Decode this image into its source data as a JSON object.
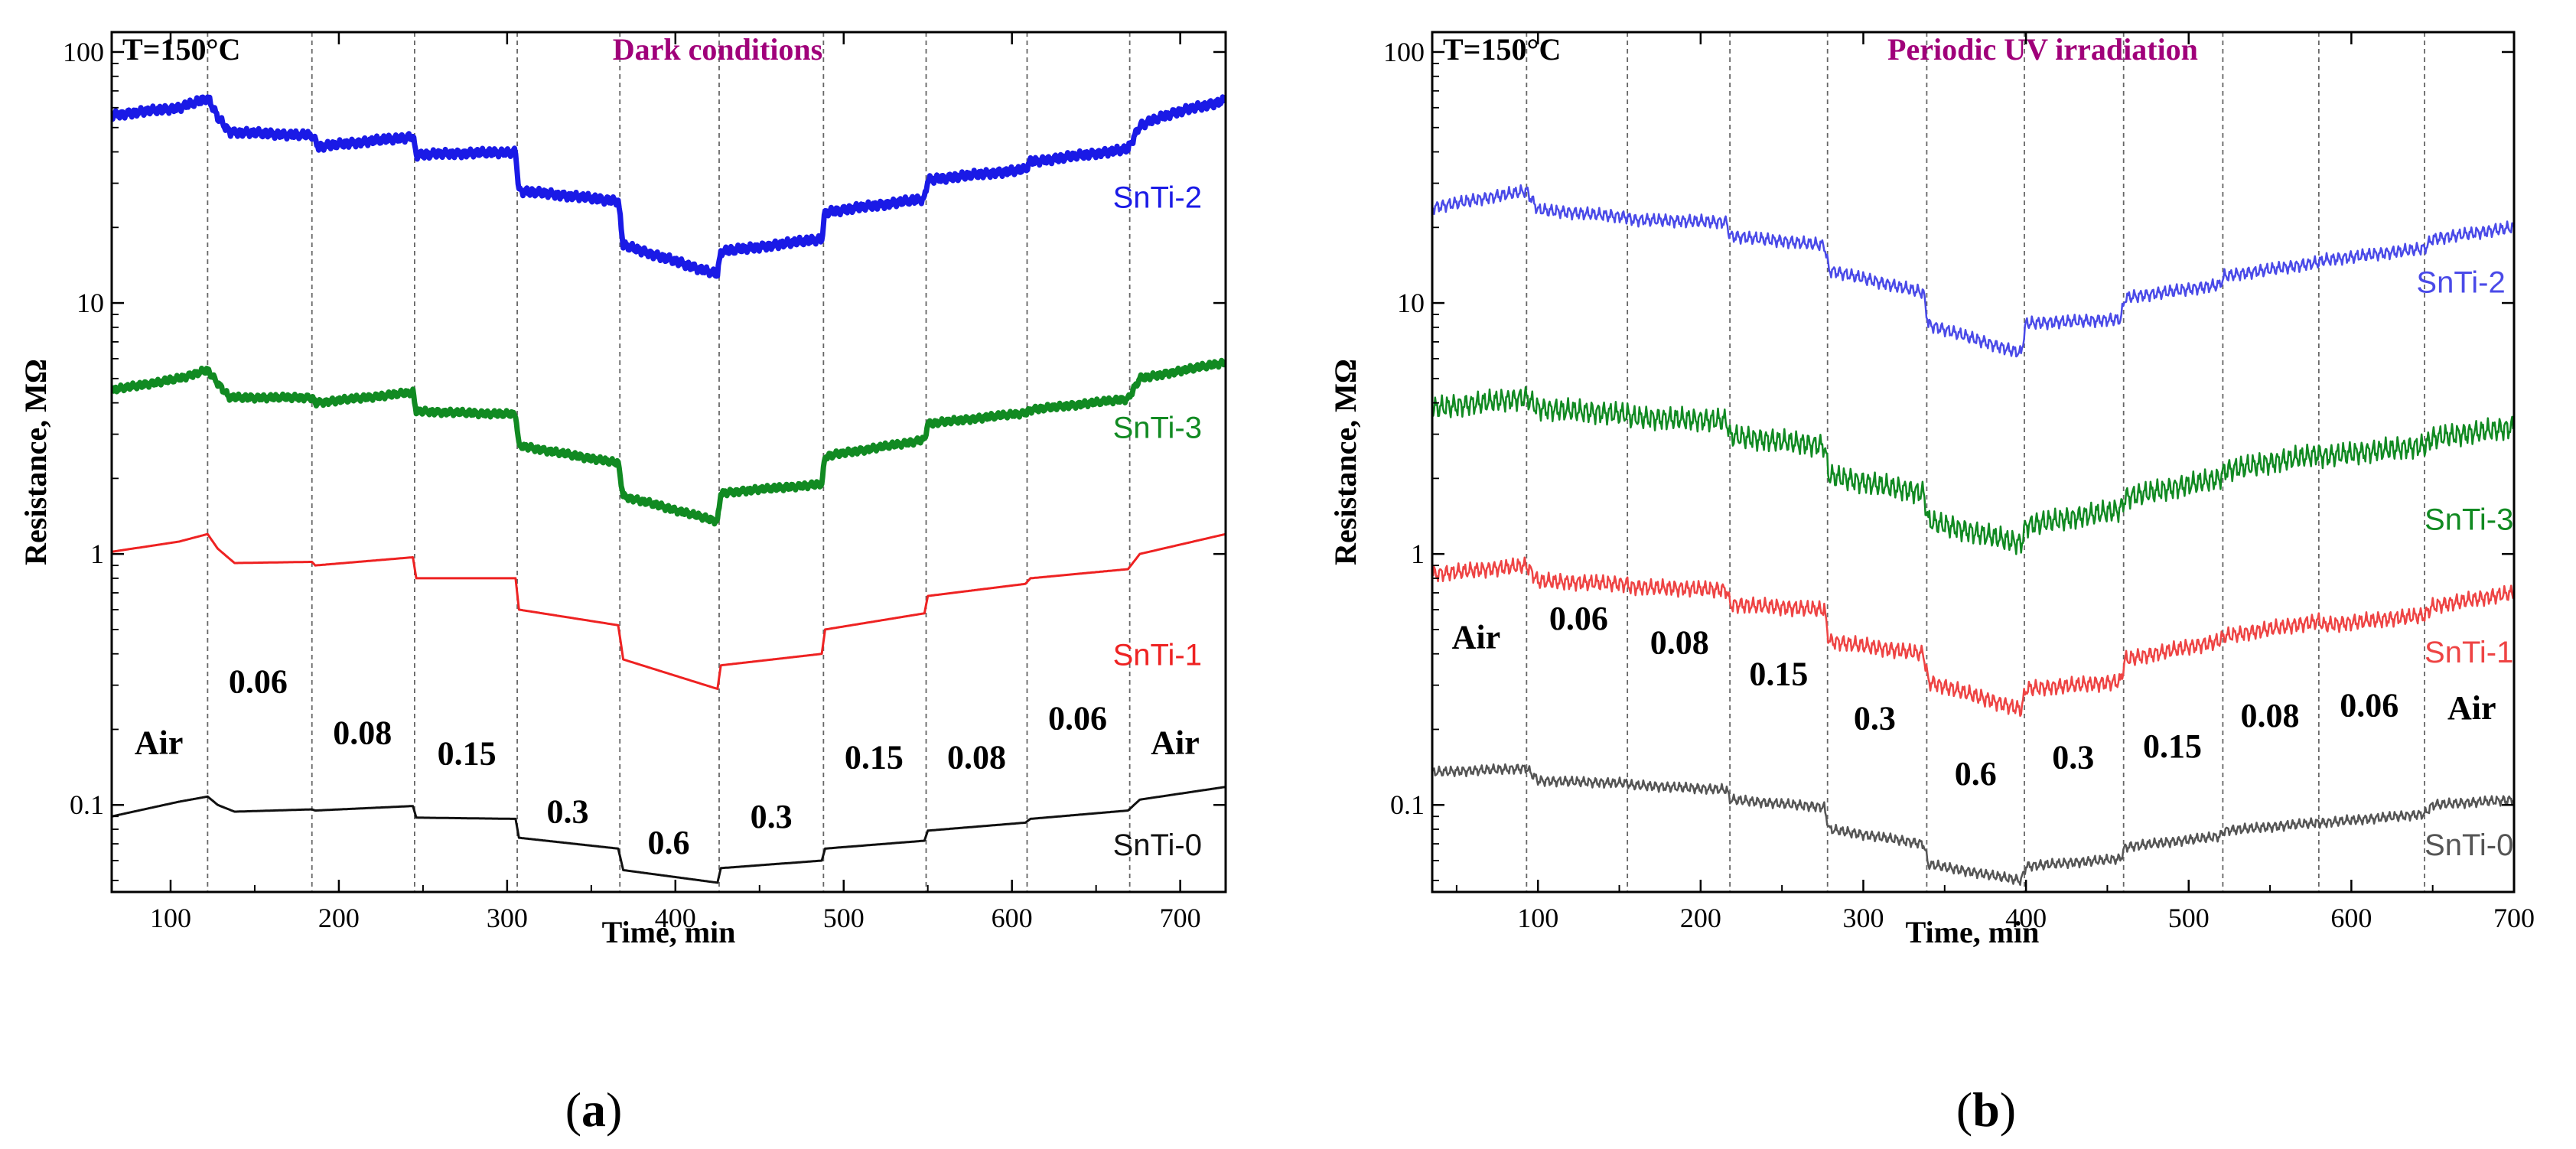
{
  "colors": {
    "SnTi-2": "#1a1ae6",
    "SnTi-3": "#118a22",
    "SnTi-1": "#ee2222",
    "SnTi-0": "#111111",
    "condition_title": "#a0007a"
  },
  "chart_data": [
    {
      "type": "line",
      "panel": "(a)",
      "panel_paren_open": "(",
      "panel_letter": "a",
      "panel_paren_close": ")",
      "temperature": "T=150°C",
      "title": "Dark conditions",
      "xlabel": "Time, min",
      "ylabel": "Resistance, MΩ",
      "yscale": "log",
      "xlim": [
        65,
        727
      ],
      "ylim": [
        0.045,
        120
      ],
      "xticks": [
        100,
        200,
        300,
        400,
        500,
        600,
        700
      ],
      "yticks": [
        {
          "value": 0.1,
          "label": "0.1"
        },
        {
          "value": 1,
          "label": "1"
        },
        {
          "value": 10,
          "label": "10"
        },
        {
          "value": 100,
          "label": "100"
        }
      ],
      "gas_switch_times": [
        122,
        184,
        245,
        306,
        367,
        426,
        488,
        549,
        609,
        670
      ],
      "concentration_labels": [
        {
          "text": "Air",
          "x": 93,
          "y": 0.16
        },
        {
          "text": "0.06",
          "x": 152,
          "y": 0.28
        },
        {
          "text": "0.08",
          "x": 214,
          "y": 0.175
        },
        {
          "text": "0.15",
          "x": 276,
          "y": 0.145
        },
        {
          "text": "0.3",
          "x": 336,
          "y": 0.085
        },
        {
          "text": "0.6",
          "x": 396,
          "y": 0.064
        },
        {
          "text": "0.3",
          "x": 457,
          "y": 0.081
        },
        {
          "text": "0.15",
          "x": 518,
          "y": 0.14
        },
        {
          "text": "0.08",
          "x": 579,
          "y": 0.14
        },
        {
          "text": "0.06",
          "x": 639,
          "y": 0.2
        },
        {
          "text": "Air",
          "x": 697,
          "y": 0.16
        }
      ],
      "series": [
        {
          "name": "SnTi-2",
          "color": "#1a1ae6",
          "width": 7,
          "noise": 0.018,
          "label_x": 660,
          "label_y": 24,
          "points": [
            [
              65,
              56
            ],
            [
              105,
              60
            ],
            [
              118,
              64
            ],
            [
              122,
              66
            ],
            [
              128,
              55
            ],
            [
              135,
              48
            ],
            [
              184,
              46.5
            ],
            [
              188,
              42
            ],
            [
              244,
              46
            ],
            [
              246,
              39
            ],
            [
              305,
              40
            ],
            [
              307,
              28
            ],
            [
              366,
              25.5
            ],
            [
              369,
              17
            ],
            [
              425,
              13
            ],
            [
              427,
              16
            ],
            [
              487,
              18
            ],
            [
              489,
              23
            ],
            [
              548,
              26
            ],
            [
              550,
              31
            ],
            [
              608,
              34
            ],
            [
              611,
              36.5
            ],
            [
              669,
              41
            ],
            [
              676,
              51
            ],
            [
              695,
              57
            ],
            [
              727,
              64
            ]
          ]
        },
        {
          "name": "SnTi-3",
          "color": "#118a22",
          "width": 7,
          "noise": 0.014,
          "label_x": 660,
          "label_y": 2.9,
          "points": [
            [
              65,
              4.5
            ],
            [
              105,
              5
            ],
            [
              122,
              5.4
            ],
            [
              128,
              4.8
            ],
            [
              135,
              4.2
            ],
            [
              184,
              4.2
            ],
            [
              186,
              4.0
            ],
            [
              244,
              4.4
            ],
            [
              246,
              3.7
            ],
            [
              305,
              3.6
            ],
            [
              307,
              2.7
            ],
            [
              366,
              2.3
            ],
            [
              369,
              1.7
            ],
            [
              425,
              1.35
            ],
            [
              427,
              1.75
            ],
            [
              487,
              1.9
            ],
            [
              489,
              2.45
            ],
            [
              548,
              2.85
            ],
            [
              550,
              3.3
            ],
            [
              608,
              3.65
            ],
            [
              611,
              3.75
            ],
            [
              669,
              4.15
            ],
            [
              676,
              5.0
            ],
            [
              727,
              5.8
            ]
          ]
        },
        {
          "name": "SnTi-1",
          "color": "#ee2222",
          "width": 3,
          "noise": 0,
          "label_x": 660,
          "label_y": 0.36,
          "points": [
            [
              65,
              1.02
            ],
            [
              105,
              1.12
            ],
            [
              122,
              1.2
            ],
            [
              128,
              1.05
            ],
            [
              138,
              0.92
            ],
            [
              184,
              0.93
            ],
            [
              186,
              0.9
            ],
            [
              244,
              0.97
            ],
            [
              246,
              0.8
            ],
            [
              305,
              0.8
            ],
            [
              307,
              0.6
            ],
            [
              366,
              0.52
            ],
            [
              369,
              0.38
            ],
            [
              425,
              0.29
            ],
            [
              427,
              0.36
            ],
            [
              487,
              0.4
            ],
            [
              489,
              0.5
            ],
            [
              548,
              0.58
            ],
            [
              550,
              0.68
            ],
            [
              608,
              0.76
            ],
            [
              611,
              0.8
            ],
            [
              669,
              0.87
            ],
            [
              676,
              1.0
            ],
            [
              727,
              1.2
            ]
          ]
        },
        {
          "name": "SnTi-0",
          "color": "#111111",
          "width": 3,
          "noise": 0,
          "label_x": 660,
          "label_y": 0.063,
          "points": [
            [
              65,
              0.09
            ],
            [
              105,
              0.103
            ],
            [
              122,
              0.108
            ],
            [
              128,
              0.1
            ],
            [
              138,
              0.094
            ],
            [
              184,
              0.096
            ],
            [
              186,
              0.095
            ],
            [
              244,
              0.099
            ],
            [
              246,
              0.089
            ],
            [
              305,
              0.088
            ],
            [
              307,
              0.074
            ],
            [
              366,
              0.067
            ],
            [
              369,
              0.055
            ],
            [
              425,
              0.049
            ],
            [
              427,
              0.056
            ],
            [
              487,
              0.06
            ],
            [
              489,
              0.067
            ],
            [
              548,
              0.072
            ],
            [
              550,
              0.079
            ],
            [
              608,
              0.085
            ],
            [
              611,
              0.088
            ],
            [
              669,
              0.095
            ],
            [
              676,
              0.105
            ],
            [
              727,
              0.118
            ]
          ]
        }
      ]
    },
    {
      "type": "line",
      "panel": "(b)",
      "panel_paren_open": "(",
      "panel_letter": "b",
      "panel_paren_close": ")",
      "temperature": "T=150°C",
      "title": "Periodic UV irradiation",
      "xlabel": "Time, min",
      "ylabel": "Resistance, MΩ",
      "yscale": "log",
      "xlim": [
        35,
        700
      ],
      "ylim": [
        0.045,
        120
      ],
      "xticks": [
        100,
        200,
        300,
        400,
        500,
        600,
        700
      ],
      "yticks": [
        {
          "value": 0.1,
          "label": "0.1"
        },
        {
          "value": 1,
          "label": "1"
        },
        {
          "value": 10,
          "label": "10"
        },
        {
          "value": 100,
          "label": "100"
        }
      ],
      "gas_switch_times": [
        93,
        155,
        218,
        278,
        339,
        399,
        460,
        521,
        580,
        645
      ],
      "concentration_labels": [
        {
          "text": "Air",
          "x": 62,
          "y": 0.42
        },
        {
          "text": "0.06",
          "x": 125,
          "y": 0.5
        },
        {
          "text": "0.08",
          "x": 187,
          "y": 0.4
        },
        {
          "text": "0.15",
          "x": 248,
          "y": 0.3
        },
        {
          "text": "0.3",
          "x": 307,
          "y": 0.2
        },
        {
          "text": "0.6",
          "x": 369,
          "y": 0.12
        },
        {
          "text": "0.3",
          "x": 429,
          "y": 0.14
        },
        {
          "text": "0.15",
          "x": 490,
          "y": 0.155
        },
        {
          "text": "0.08",
          "x": 550,
          "y": 0.205
        },
        {
          "text": "0.06",
          "x": 611,
          "y": 0.225
        },
        {
          "text": "Air",
          "x": 674,
          "y": 0.22
        }
      ],
      "series": [
        {
          "name": "SnTi-2",
          "color": "#4a4ae8",
          "width": 2.5,
          "noise": 0.028,
          "label_x": 640,
          "label_y": 11,
          "points": [
            [
              35,
              24
            ],
            [
              93,
              28
            ],
            [
              100,
              23.5
            ],
            [
              155,
              22
            ],
            [
              157,
              21.5
            ],
            [
              216,
              21
            ],
            [
              218,
              18.5
            ],
            [
              276,
              17
            ],
            [
              279,
              13.5
            ],
            [
              337,
              11
            ],
            [
              340,
              8.2
            ],
            [
              397,
              6.3
            ],
            [
              400,
              8.3
            ],
            [
              458,
              8.6
            ],
            [
              461,
              10.5
            ],
            [
              519,
              11.8
            ],
            [
              522,
              12.8
            ],
            [
              580,
              14.5
            ],
            [
              583,
              14.8
            ],
            [
              645,
              16.5
            ],
            [
              650,
              18
            ],
            [
              700,
              20
            ]
          ]
        },
        {
          "name": "SnTi-3",
          "color": "#118a22",
          "width": 2.5,
          "noise": 0.05,
          "label_x": 645,
          "label_y": 1.25,
          "points": [
            [
              35,
              3.8
            ],
            [
              93,
              4.2
            ],
            [
              100,
              3.8
            ],
            [
              155,
              3.6
            ],
            [
              157,
              3.5
            ],
            [
              216,
              3.4
            ],
            [
              218,
              2.95
            ],
            [
              276,
              2.7
            ],
            [
              279,
              2.05
            ],
            [
              337,
              1.75
            ],
            [
              340,
              1.35
            ],
            [
              397,
              1.1
            ],
            [
              400,
              1.3
            ],
            [
              458,
              1.5
            ],
            [
              461,
              1.68
            ],
            [
              519,
              2.0
            ],
            [
              522,
              2.15
            ],
            [
              580,
              2.5
            ],
            [
              583,
              2.45
            ],
            [
              645,
              2.7
            ],
            [
              650,
              2.9
            ],
            [
              700,
              3.2
            ]
          ]
        },
        {
          "name": "SnTi-1",
          "color": "#ee4444",
          "width": 2.5,
          "noise": 0.035,
          "label_x": 645,
          "label_y": 0.37,
          "points": [
            [
              35,
              0.83
            ],
            [
              93,
              0.9
            ],
            [
              100,
              0.78
            ],
            [
              155,
              0.76
            ],
            [
              157,
              0.74
            ],
            [
              216,
              0.72
            ],
            [
              218,
              0.63
            ],
            [
              276,
              0.6
            ],
            [
              279,
              0.45
            ],
            [
              337,
              0.4
            ],
            [
              340,
              0.31
            ],
            [
              397,
              0.24
            ],
            [
              400,
              0.29
            ],
            [
              458,
              0.31
            ],
            [
              461,
              0.38
            ],
            [
              519,
              0.45
            ],
            [
              522,
              0.47
            ],
            [
              580,
              0.54
            ],
            [
              583,
              0.52
            ],
            [
              645,
              0.57
            ],
            [
              650,
              0.62
            ],
            [
              700,
              0.7
            ]
          ]
        },
        {
          "name": "SnTi-0",
          "color": "#555555",
          "width": 2.5,
          "noise": 0.022,
          "label_x": 645,
          "label_y": 0.063,
          "points": [
            [
              35,
              0.135
            ],
            [
              93,
              0.14
            ],
            [
              100,
              0.125
            ],
            [
              155,
              0.122
            ],
            [
              157,
              0.12
            ],
            [
              216,
              0.115
            ],
            [
              218,
              0.105
            ],
            [
              276,
              0.098
            ],
            [
              279,
              0.08
            ],
            [
              337,
              0.07
            ],
            [
              340,
              0.058
            ],
            [
              397,
              0.05
            ],
            [
              400,
              0.057
            ],
            [
              458,
              0.061
            ],
            [
              461,
              0.068
            ],
            [
              519,
              0.075
            ],
            [
              522,
              0.079
            ],
            [
              580,
              0.085
            ],
            [
              583,
              0.085
            ],
            [
              645,
              0.092
            ],
            [
              650,
              0.1
            ],
            [
              700,
              0.105
            ]
          ]
        }
      ]
    }
  ]
}
